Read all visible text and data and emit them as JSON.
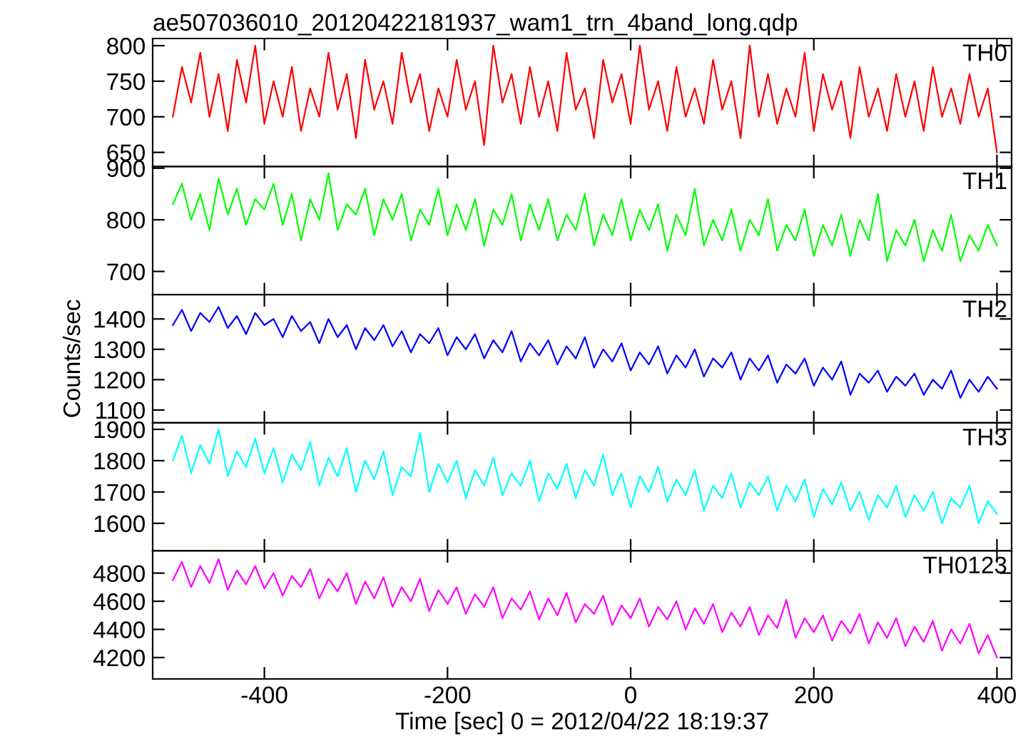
{
  "chart_data": [
    {
      "type": "line",
      "title": "ae507036010_20120422181937_wam1_trn_4band_long.qdp",
      "xlim": [
        -522,
        416
      ],
      "xticks": [
        -400,
        -200,
        0,
        200,
        400
      ],
      "ylim": [
        630,
        810
      ],
      "yticks": [
        650,
        700,
        750,
        800
      ],
      "tick_labels": "y",
      "grid": false,
      "x": [
        -500,
        -490,
        -480,
        -470,
        -460,
        -450,
        -440,
        -430,
        -420,
        -410,
        -400,
        -390,
        -380,
        -370,
        -360,
        -350,
        -340,
        -330,
        -320,
        -310,
        -300,
        -290,
        -280,
        -270,
        -260,
        -250,
        -240,
        -230,
        -220,
        -210,
        -200,
        -190,
        -180,
        -170,
        -160,
        -150,
        -140,
        -130,
        -120,
        -110,
        -100,
        -90,
        -80,
        -70,
        -60,
        -50,
        -40,
        -30,
        -20,
        -10,
        0,
        10,
        20,
        30,
        40,
        50,
        60,
        70,
        80,
        90,
        100,
        110,
        120,
        130,
        140,
        150,
        160,
        170,
        180,
        190,
        200,
        210,
        220,
        230,
        240,
        250,
        260,
        270,
        280,
        290,
        300,
        310,
        320,
        330,
        340,
        350,
        360,
        370,
        380,
        390,
        400
      ],
      "series": [
        {
          "name": "TH0",
          "color": "#ff0000",
          "values": [
            700,
            770,
            720,
            790,
            700,
            760,
            680,
            780,
            720,
            800,
            690,
            750,
            700,
            770,
            680,
            740,
            700,
            790,
            710,
            760,
            670,
            780,
            710,
            750,
            690,
            790,
            720,
            760,
            680,
            740,
            700,
            780,
            710,
            750,
            660,
            800,
            720,
            760,
            690,
            770,
            700,
            750,
            680,
            790,
            710,
            740,
            670,
            780,
            720,
            760,
            690,
            800,
            710,
            750,
            680,
            770,
            700,
            740,
            690,
            780,
            710,
            750,
            670,
            800,
            700,
            760,
            690,
            740,
            700,
            790,
            680,
            760,
            710,
            750,
            670,
            770,
            700,
            740,
            680,
            760,
            700,
            750,
            680,
            770,
            700,
            740,
            690,
            760,
            700,
            740,
            650
          ]
        }
      ]
    },
    {
      "type": "line",
      "xlim": [
        -522,
        416
      ],
      "xticks": [
        -400,
        -200,
        0,
        200,
        400
      ],
      "ylim": [
        655,
        903
      ],
      "yticks": [
        700,
        800,
        900
      ],
      "tick_labels": "y",
      "grid": false,
      "x": [
        -500,
        -490,
        -480,
        -470,
        -460,
        -450,
        -440,
        -430,
        -420,
        -410,
        -400,
        -390,
        -380,
        -370,
        -360,
        -350,
        -340,
        -330,
        -320,
        -310,
        -300,
        -290,
        -280,
        -270,
        -260,
        -250,
        -240,
        -230,
        -220,
        -210,
        -200,
        -190,
        -180,
        -170,
        -160,
        -150,
        -140,
        -130,
        -120,
        -110,
        -100,
        -90,
        -80,
        -70,
        -60,
        -50,
        -40,
        -30,
        -20,
        -10,
        0,
        10,
        20,
        30,
        40,
        50,
        60,
        70,
        80,
        90,
        100,
        110,
        120,
        130,
        140,
        150,
        160,
        170,
        180,
        190,
        200,
        210,
        220,
        230,
        240,
        250,
        260,
        270,
        280,
        290,
        300,
        310,
        320,
        330,
        340,
        350,
        360,
        370,
        380,
        390,
        400
      ],
      "series": [
        {
          "name": "TH1",
          "color": "#00ff00",
          "values": [
            830,
            870,
            800,
            850,
            780,
            880,
            810,
            860,
            790,
            840,
            820,
            870,
            790,
            850,
            760,
            840,
            800,
            890,
            780,
            830,
            810,
            860,
            770,
            840,
            800,
            850,
            760,
            820,
            790,
            860,
            770,
            830,
            780,
            840,
            750,
            820,
            790,
            850,
            760,
            830,
            780,
            840,
            760,
            810,
            780,
            850,
            750,
            810,
            770,
            840,
            760,
            820,
            780,
            830,
            740,
            810,
            770,
            860,
            750,
            800,
            760,
            820,
            740,
            800,
            770,
            840,
            740,
            790,
            760,
            820,
            730,
            790,
            750,
            810,
            730,
            800,
            760,
            850,
            720,
            780,
            750,
            800,
            720,
            780,
            740,
            810,
            720,
            770,
            740,
            790,
            750
          ]
        }
      ]
    },
    {
      "type": "line",
      "ylabel": "Counts/sec",
      "xlim": [
        -522,
        416
      ],
      "xticks": [
        -400,
        -200,
        0,
        200,
        400
      ],
      "ylim": [
        1058,
        1480
      ],
      "yticks": [
        1100,
        1200,
        1300,
        1400
      ],
      "tick_labels": "y",
      "grid": false,
      "x": [
        -500,
        -490,
        -480,
        -470,
        -460,
        -450,
        -440,
        -430,
        -420,
        -410,
        -400,
        -390,
        -380,
        -370,
        -360,
        -350,
        -340,
        -330,
        -320,
        -310,
        -300,
        -290,
        -280,
        -270,
        -260,
        -250,
        -240,
        -230,
        -220,
        -210,
        -200,
        -190,
        -180,
        -170,
        -160,
        -150,
        -140,
        -130,
        -120,
        -110,
        -100,
        -90,
        -80,
        -70,
        -60,
        -50,
        -40,
        -30,
        -20,
        -10,
        0,
        10,
        20,
        30,
        40,
        50,
        60,
        70,
        80,
        90,
        100,
        110,
        120,
        130,
        140,
        150,
        160,
        170,
        180,
        190,
        200,
        210,
        220,
        230,
        240,
        250,
        260,
        270,
        280,
        290,
        300,
        310,
        320,
        330,
        340,
        350,
        360,
        370,
        380,
        390,
        400
      ],
      "series": [
        {
          "name": "TH2",
          "color": "#0000ff",
          "values": [
            1380,
            1430,
            1360,
            1420,
            1390,
            1440,
            1370,
            1410,
            1350,
            1420,
            1380,
            1400,
            1340,
            1410,
            1360,
            1390,
            1320,
            1400,
            1340,
            1380,
            1300,
            1370,
            1330,
            1380,
            1310,
            1360,
            1290,
            1350,
            1320,
            1370,
            1280,
            1340,
            1300,
            1350,
            1270,
            1330,
            1290,
            1360,
            1260,
            1320,
            1280,
            1330,
            1250,
            1310,
            1270,
            1340,
            1240,
            1300,
            1260,
            1320,
            1230,
            1290,
            1250,
            1310,
            1220,
            1280,
            1240,
            1300,
            1210,
            1270,
            1240,
            1290,
            1200,
            1270,
            1230,
            1280,
            1190,
            1250,
            1220,
            1270,
            1180,
            1240,
            1200,
            1260,
            1150,
            1220,
            1190,
            1230,
            1160,
            1210,
            1180,
            1220,
            1150,
            1200,
            1170,
            1230,
            1140,
            1200,
            1160,
            1210,
            1170
          ]
        }
      ]
    },
    {
      "type": "line",
      "xlim": [
        -522,
        416
      ],
      "xticks": [
        -400,
        -200,
        0,
        200,
        400
      ],
      "ylim": [
        1512,
        1921
      ],
      "yticks": [
        1600,
        1700,
        1800,
        1900
      ],
      "tick_labels": "y",
      "grid": false,
      "x": [
        -500,
        -490,
        -480,
        -470,
        -460,
        -450,
        -440,
        -430,
        -420,
        -410,
        -400,
        -390,
        -380,
        -370,
        -360,
        -350,
        -340,
        -330,
        -320,
        -310,
        -300,
        -290,
        -280,
        -270,
        -260,
        -250,
        -240,
        -230,
        -220,
        -210,
        -200,
        -190,
        -180,
        -170,
        -160,
        -150,
        -140,
        -130,
        -120,
        -110,
        -100,
        -90,
        -80,
        -70,
        -60,
        -50,
        -40,
        -30,
        -20,
        -10,
        0,
        10,
        20,
        30,
        40,
        50,
        60,
        70,
        80,
        90,
        100,
        110,
        120,
        130,
        140,
        150,
        160,
        170,
        180,
        190,
        200,
        210,
        220,
        230,
        240,
        250,
        260,
        270,
        280,
        290,
        300,
        310,
        320,
        330,
        340,
        350,
        360,
        370,
        380,
        390,
        400
      ],
      "series": [
        {
          "name": "TH3",
          "color": "#00ffff",
          "values": [
            1800,
            1880,
            1760,
            1850,
            1790,
            1900,
            1750,
            1830,
            1780,
            1870,
            1760,
            1840,
            1730,
            1820,
            1770,
            1860,
            1720,
            1810,
            1750,
            1840,
            1700,
            1800,
            1740,
            1830,
            1690,
            1780,
            1750,
            1890,
            1700,
            1790,
            1730,
            1800,
            1680,
            1770,
            1720,
            1810,
            1690,
            1760,
            1720,
            1800,
            1670,
            1760,
            1710,
            1790,
            1680,
            1770,
            1720,
            1820,
            1690,
            1760,
            1650,
            1750,
            1700,
            1780,
            1670,
            1740,
            1690,
            1770,
            1640,
            1720,
            1680,
            1760,
            1650,
            1730,
            1690,
            1750,
            1640,
            1720,
            1670,
            1740,
            1620,
            1710,
            1660,
            1730,
            1640,
            1700,
            1610,
            1690,
            1650,
            1720,
            1620,
            1690,
            1640,
            1700,
            1600,
            1680,
            1650,
            1720,
            1600,
            1670,
            1630
          ]
        }
      ]
    },
    {
      "type": "line",
      "xlabel": "Time [sec] 0 = 2012/04/22 18:19:37",
      "xlim": [
        -522,
        416
      ],
      "xticks": [
        -400,
        -200,
        0,
        200,
        400
      ],
      "ylim": [
        4048,
        4958
      ],
      "yticks": [
        4200,
        4400,
        4600,
        4800
      ],
      "grid": false,
      "x": [
        -500,
        -490,
        -480,
        -470,
        -460,
        -450,
        -440,
        -430,
        -420,
        -410,
        -400,
        -390,
        -380,
        -370,
        -360,
        -350,
        -340,
        -330,
        -320,
        -310,
        -300,
        -290,
        -280,
        -270,
        -260,
        -250,
        -240,
        -230,
        -220,
        -210,
        -200,
        -190,
        -180,
        -170,
        -160,
        -150,
        -140,
        -130,
        -120,
        -110,
        -100,
        -90,
        -80,
        -70,
        -60,
        -50,
        -40,
        -30,
        -20,
        -10,
        0,
        10,
        20,
        30,
        40,
        50,
        60,
        70,
        80,
        90,
        100,
        110,
        120,
        130,
        140,
        150,
        160,
        170,
        180,
        190,
        200,
        210,
        220,
        230,
        240,
        250,
        260,
        270,
        280,
        290,
        300,
        310,
        320,
        330,
        340,
        350,
        360,
        370,
        380,
        390,
        400
      ],
      "series": [
        {
          "name": "TH0123",
          "color": "#ff00ff",
          "values": [
            4750,
            4880,
            4700,
            4850,
            4730,
            4900,
            4680,
            4820,
            4720,
            4850,
            4690,
            4800,
            4640,
            4780,
            4700,
            4830,
            4620,
            4760,
            4670,
            4800,
            4580,
            4740,
            4620,
            4770,
            4560,
            4700,
            4600,
            4760,
            4530,
            4680,
            4580,
            4700,
            4510,
            4650,
            4560,
            4700,
            4480,
            4620,
            4540,
            4670,
            4470,
            4620,
            4500,
            4660,
            4450,
            4580,
            4510,
            4640,
            4430,
            4570,
            4480,
            4620,
            4420,
            4560,
            4470,
            4600,
            4400,
            4550,
            4440,
            4580,
            4380,
            4520,
            4420,
            4560,
            4360,
            4500,
            4410,
            4610,
            4340,
            4480,
            4380,
            4500,
            4320,
            4460,
            4370,
            4510,
            4300,
            4450,
            4340,
            4480,
            4280,
            4420,
            4310,
            4460,
            4250,
            4400,
            4300,
            4440,
            4230,
            4360,
            4200
          ]
        }
      ]
    }
  ]
}
